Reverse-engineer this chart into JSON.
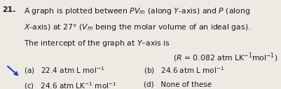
{
  "bg_color": "#ede9e3",
  "question_number": "21.",
  "line1": "A graph is plotted between $PV_m$ (along $Y$-axis) and $P$ (along",
  "line2": "$X$-axis) at 27° ($V_m$ being the molar volume of an ideal gas).",
  "line3": "The intercept of the graph at $Y$–axis is",
  "line4": "($R$ = 0.082 atm LK$^{-1}$mol$^{-1}$)",
  "opt_a": "(a)   22.4 atm L mol$^{-1}$",
  "opt_b": "(b)   24.6 atm L mol$^{-1}$",
  "opt_c": "(c)   24.6 atm LK$^{-1}$ mol$^{-1}$",
  "opt_d": "(d)   None of these",
  "text_color": "#1a1a1a",
  "arrow_color": "#2244bb",
  "fontsize_main": 7.8,
  "fontsize_opts": 7.5
}
